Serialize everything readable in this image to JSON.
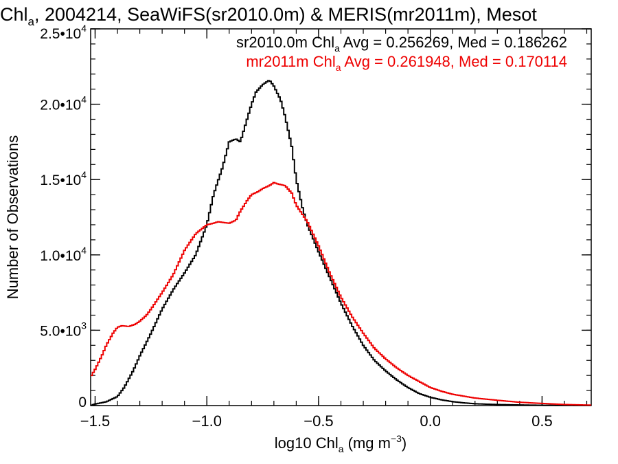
{
  "chart_data": {
    "type": "line",
    "title": {
      "pre": "Chl",
      "sub": "a",
      "post": ", 2004214, SeaWiFS(sr2010.0m) & MERIS(mr2011m), Mesot"
    },
    "xlabel": {
      "pre": "log10 Chl",
      "sub": "a",
      "mid": " (mg m",
      "sup": "−3",
      "post": ")"
    },
    "ylabel": "Number of Observations",
    "xlim": [
      -1.52,
      0.72
    ],
    "ylim": [
      0,
      25000
    ],
    "x_ticks": [
      {
        "value": -1.5,
        "label": "−1.5"
      },
      {
        "value": -1.0,
        "label": "−1.0"
      },
      {
        "value": -0.5,
        "label": "−0.5"
      },
      {
        "value": 0.0,
        "label": "0.0"
      },
      {
        "value": 0.5,
        "label": "0.5"
      }
    ],
    "y_ticks": [
      {
        "value": 0,
        "mant": "0",
        "exp": ""
      },
      {
        "value": 5000,
        "mant": "5.0•10",
        "exp": "3"
      },
      {
        "value": 10000,
        "mant": "1.0•10",
        "exp": "4"
      },
      {
        "value": 15000,
        "mant": "1.5•10",
        "exp": "4"
      },
      {
        "value": 20000,
        "mant": "2.0•10",
        "exp": "4"
      },
      {
        "value": 25000,
        "mant": "2.5•10",
        "exp": "4"
      }
    ],
    "x_minor_step": 0.1,
    "y_minor_step": 1000,
    "grid": false,
    "legend_placement": "top-right",
    "annotations": [
      {
        "name": "sr2010.0m",
        "color": "#000000",
        "pre": "sr2010.0m Chl",
        "sub": "a",
        "post": " Avg = 0.256269, Med = 0.186262"
      },
      {
        "name": "mr2011m",
        "color": "#ee0000",
        "pre": "mr2011m Chl",
        "sub": "a",
        "post": " Avg = 0.261948, Med = 0.170114"
      }
    ],
    "series": [
      {
        "name": "sr2010.0m",
        "color": "#000000",
        "x": [
          -1.52,
          -1.5,
          -1.45,
          -1.4,
          -1.37,
          -1.33,
          -1.3,
          -1.25,
          -1.2,
          -1.15,
          -1.1,
          -1.05,
          -1.0,
          -0.97,
          -0.93,
          -0.9,
          -0.87,
          -0.85,
          -0.82,
          -0.8,
          -0.78,
          -0.75,
          -0.72,
          -0.7,
          -0.67,
          -0.65,
          -0.62,
          -0.6,
          -0.57,
          -0.55,
          -0.5,
          -0.45,
          -0.4,
          -0.35,
          -0.3,
          -0.25,
          -0.2,
          -0.15,
          -0.1,
          -0.05,
          0.0,
          0.05,
          0.1,
          0.15,
          0.2,
          0.3,
          0.4,
          0.5,
          0.6,
          0.72
        ],
        "y": [
          0,
          100,
          250,
          600,
          1200,
          2300,
          3300,
          4800,
          6400,
          7700,
          8800,
          10000,
          12000,
          14000,
          15800,
          17500,
          17700,
          17500,
          19000,
          20000,
          20800,
          21300,
          21600,
          21200,
          20300,
          19200,
          17200,
          15000,
          13000,
          12000,
          10200,
          8500,
          6800,
          5300,
          4000,
          3000,
          2300,
          1700,
          1200,
          800,
          550,
          380,
          260,
          180,
          120,
          70,
          40,
          20,
          10,
          5
        ]
      },
      {
        "name": "mr2011m",
        "color": "#ee0000",
        "x": [
          -1.52,
          -1.5,
          -1.47,
          -1.45,
          -1.42,
          -1.4,
          -1.38,
          -1.35,
          -1.32,
          -1.3,
          -1.27,
          -1.25,
          -1.2,
          -1.15,
          -1.1,
          -1.05,
          -1.0,
          -0.97,
          -0.95,
          -0.9,
          -0.87,
          -0.85,
          -0.82,
          -0.8,
          -0.77,
          -0.75,
          -0.72,
          -0.7,
          -0.68,
          -0.65,
          -0.62,
          -0.6,
          -0.55,
          -0.5,
          -0.45,
          -0.4,
          -0.35,
          -0.3,
          -0.25,
          -0.2,
          -0.15,
          -0.1,
          -0.05,
          0.0,
          0.05,
          0.1,
          0.2,
          0.3,
          0.4,
          0.5,
          0.6,
          0.72
        ],
        "y": [
          1900,
          2400,
          3300,
          4000,
          4800,
          5200,
          5300,
          5250,
          5400,
          5600,
          6000,
          6400,
          7500,
          8700,
          10300,
          11400,
          12000,
          12100,
          12200,
          12100,
          12300,
          12900,
          13600,
          14000,
          14200,
          14400,
          14600,
          14800,
          14700,
          14600,
          14100,
          13300,
          12200,
          10600,
          8800,
          7200,
          5900,
          4800,
          3800,
          3100,
          2500,
          2000,
          1600,
          1200,
          950,
          750,
          500,
          350,
          220,
          140,
          70,
          30
        ]
      }
    ]
  }
}
